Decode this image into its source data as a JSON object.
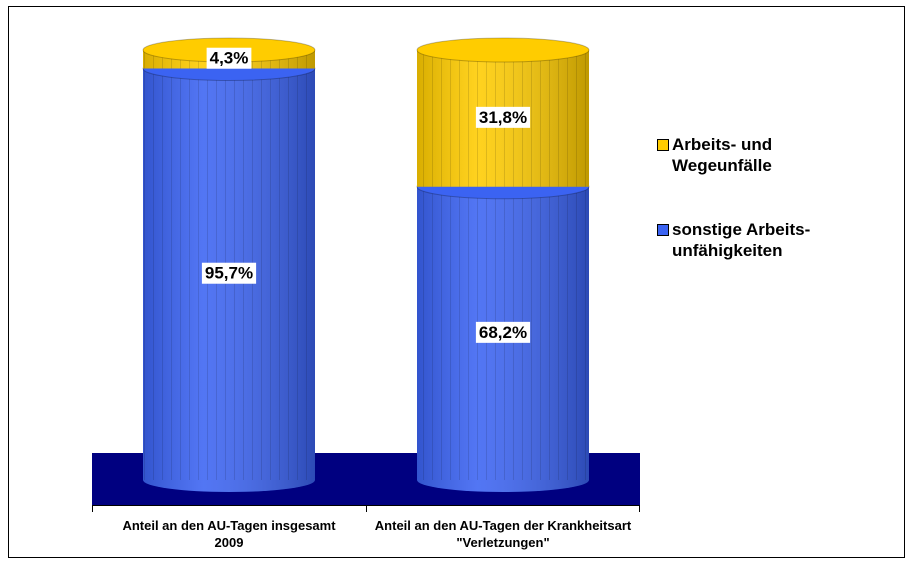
{
  "chart_data": {
    "type": "stacked_cylinder",
    "categories": [
      "Anteil an den AU-Tagen insgesamt 2009",
      "Anteil an den AU-Tagen der Krankheitsart \"Verletzungen\""
    ],
    "series": [
      {
        "name": "sonstige Arbeits-unfähigkeiten",
        "color": "#3b63f2",
        "values": [
          95.7,
          68.2
        ],
        "value_labels": [
          "95,7%",
          "68,2%"
        ]
      },
      {
        "name": "Arbeits- und Wegeunfälle",
        "color": "#ffcc00",
        "values": [
          4.3,
          31.8
        ],
        "value_labels": [
          "4,3%",
          "31,8%"
        ]
      }
    ],
    "ylim": [
      0,
      100
    ],
    "legend": "right"
  }
}
